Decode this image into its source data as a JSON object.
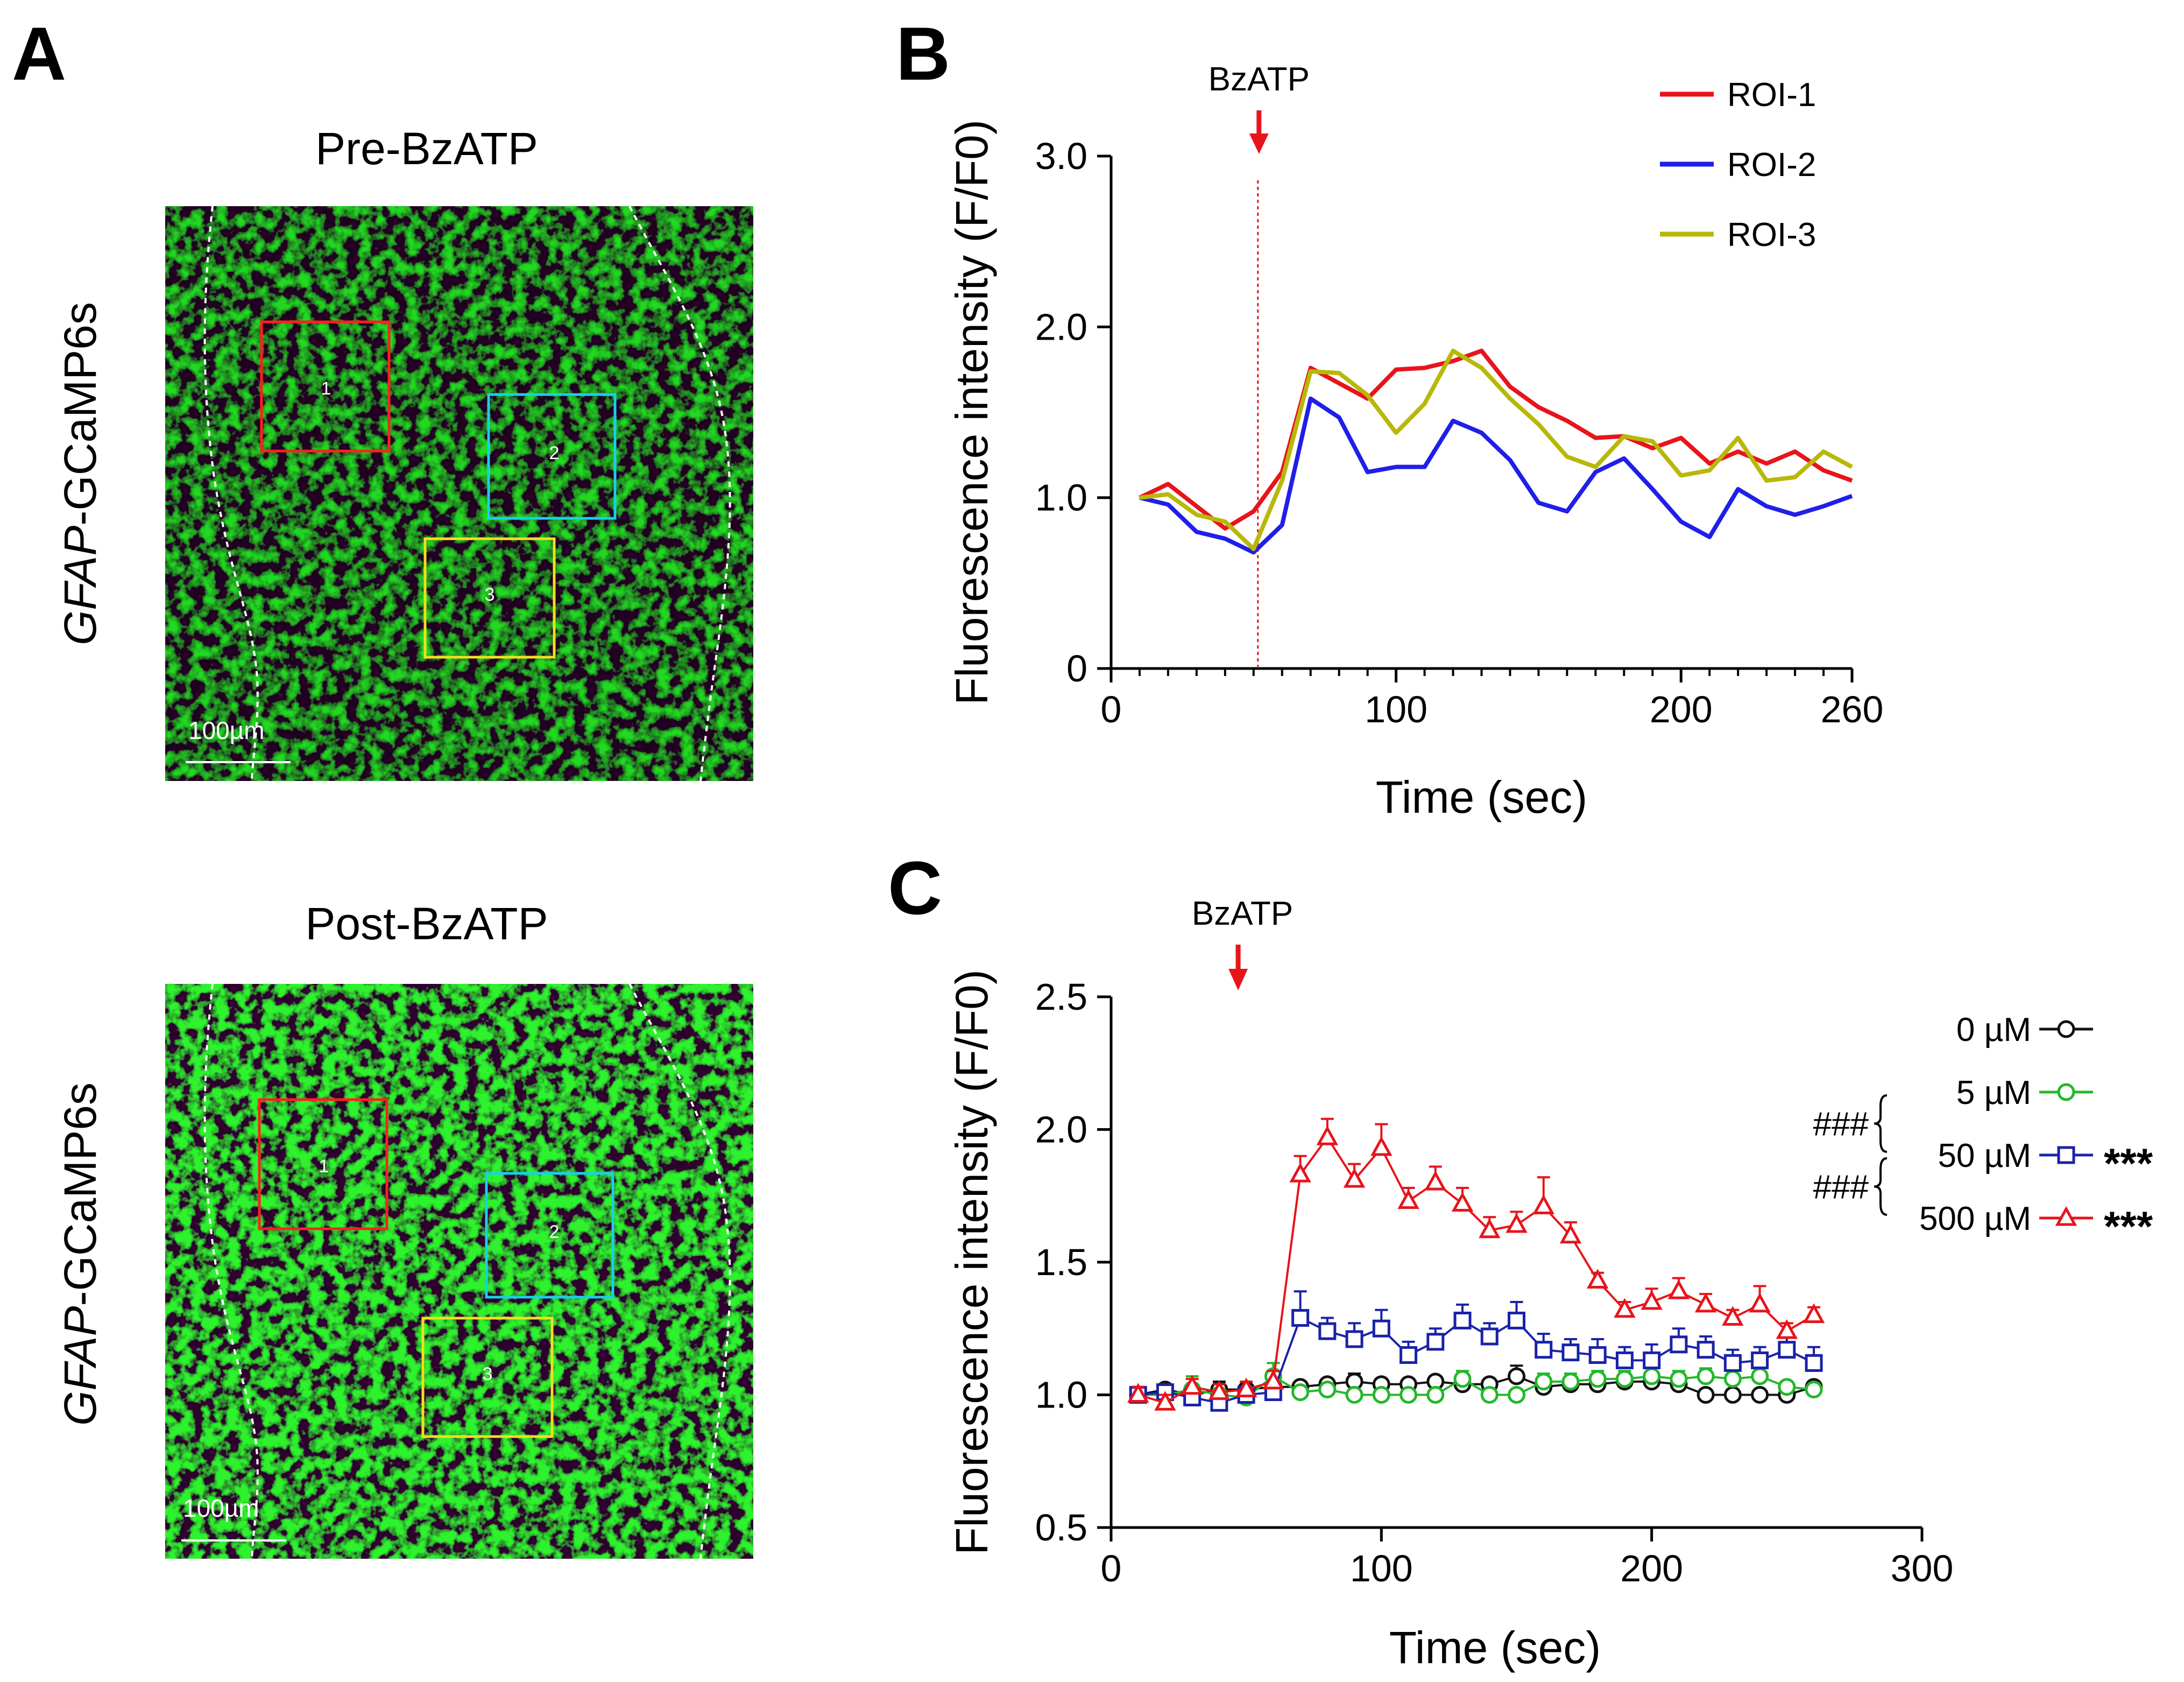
{
  "panels": {
    "a": {
      "letter": "A"
    },
    "b": {
      "letter": "B"
    },
    "c": {
      "letter": "C"
    }
  },
  "images": [
    {
      "title": "Pre-BzATP",
      "ylabel_italic": "GFAP",
      "ylabel_rest": "-GCaMP6s",
      "scale_bar": "100µm",
      "roi_labels": [
        "1",
        "2",
        "3"
      ],
      "roi_colors": [
        "#ff2020",
        "#1ad0e8",
        "#f0e020"
      ]
    },
    {
      "title": "Post-BzATP",
      "ylabel_italic": "GFAP",
      "ylabel_rest": "-GCaMP6s",
      "scale_bar": "100µm",
      "roi_labels": [
        "1",
        "2",
        "3"
      ],
      "roi_colors": [
        "#ff2020",
        "#1ad0e8",
        "#f0e020"
      ]
    }
  ],
  "chart_data": [
    {
      "id": "B",
      "type": "line",
      "xlabel": "Time (sec)",
      "ylabel": "Fluorescence intensity (F/F0)",
      "xlim": [
        0,
        260
      ],
      "ylim": [
        0,
        3.0
      ],
      "xticks": [
        0,
        100,
        200,
        260
      ],
      "xtick_labels": [
        "0",
        "100",
        "200",
        "260"
      ],
      "yticks": [
        0,
        1.0,
        2.0,
        3.0
      ],
      "ytick_labels": [
        "0",
        "1.0",
        "2.0",
        "3.0"
      ],
      "annotation": {
        "text": "BzATP",
        "x": 50,
        "color": "#e8141b"
      },
      "legend_position": "top-right",
      "x": [
        10,
        20,
        30,
        40,
        50,
        60,
        70,
        80,
        90,
        100,
        110,
        120,
        130,
        140,
        150,
        160,
        170,
        180,
        190,
        200,
        210,
        220,
        230,
        240,
        250,
        260
      ],
      "series": [
        {
          "name": "ROI-1",
          "color": "#e8141b",
          "values": [
            1.0,
            1.08,
            0.95,
            0.82,
            0.92,
            1.15,
            1.76,
            1.67,
            1.58,
            1.75,
            1.76,
            1.8,
            1.86,
            1.65,
            1.53,
            1.45,
            1.35,
            1.36,
            1.29,
            1.35,
            1.2,
            1.27,
            1.2,
            1.27,
            1.16,
            1.1
          ]
        },
        {
          "name": "ROI-2",
          "color": "#1f1fe8",
          "values": [
            1.0,
            0.96,
            0.8,
            0.76,
            0.68,
            0.84,
            1.58,
            1.47,
            1.15,
            1.18,
            1.18,
            1.45,
            1.38,
            1.22,
            0.97,
            0.92,
            1.15,
            1.23,
            1.05,
            0.86,
            0.77,
            1.05,
            0.95,
            0.9,
            0.95,
            1.01
          ]
        },
        {
          "name": "ROI-3",
          "color": "#b8b80a",
          "values": [
            1.0,
            1.02,
            0.9,
            0.86,
            0.7,
            1.1,
            1.74,
            1.73,
            1.6,
            1.38,
            1.55,
            1.86,
            1.76,
            1.58,
            1.43,
            1.24,
            1.18,
            1.36,
            1.33,
            1.13,
            1.16,
            1.35,
            1.1,
            1.12,
            1.27,
            1.18
          ]
        }
      ]
    },
    {
      "id": "C",
      "type": "line",
      "xlabel": "Time (sec)",
      "ylabel": "Fluorescence intensity (F/F0)",
      "xlim": [
        0,
        300
      ],
      "ylim": [
        0.5,
        2.5
      ],
      "xticks": [
        0,
        100,
        200,
        300
      ],
      "xtick_labels": [
        "0",
        "100",
        "200",
        "300"
      ],
      "yticks": [
        0.5,
        1.0,
        1.5,
        2.0,
        2.5
      ],
      "ytick_labels": [
        "0.5",
        "1.0",
        "1.5",
        "2.0",
        "2.5"
      ],
      "annotation": {
        "text": "BzATP",
        "x": 47,
        "color": "#e8141b"
      },
      "legend_position": "right",
      "significance": {
        "hash": "###",
        "stars": "***"
      },
      "x": [
        10,
        20,
        30,
        40,
        50,
        60,
        70,
        80,
        90,
        100,
        110,
        120,
        130,
        140,
        150,
        160,
        170,
        180,
        190,
        200,
        210,
        220,
        230,
        240,
        250,
        260
      ],
      "series": [
        {
          "name": "0 µM",
          "color": "#111111",
          "marker": "circle",
          "stars": "",
          "values": [
            1.0,
            1.02,
            1.0,
            1.02,
            1.02,
            1.03,
            1.03,
            1.04,
            1.05,
            1.04,
            1.04,
            1.05,
            1.04,
            1.04,
            1.07,
            1.03,
            1.04,
            1.04,
            1.05,
            1.05,
            1.04,
            1.0,
            1.0,
            1.0,
            1.0,
            1.03
          ],
          "errors": [
            0.03,
            0.02,
            0.02,
            0.03,
            0.02,
            0.02,
            0.02,
            0.02,
            0.03,
            0.02,
            0.02,
            0.02,
            0.02,
            0.02,
            0.04,
            0.03,
            0.02,
            0.02,
            0.02,
            0.02,
            0.02,
            0.02,
            0.02,
            0.02,
            0.02,
            0.02
          ]
        },
        {
          "name": "5 µM",
          "color": "#22b82a",
          "marker": "circle",
          "stars": "",
          "values": [
            1.0,
            1.0,
            1.02,
            1.0,
            0.99,
            1.07,
            1.01,
            1.02,
            1.0,
            1.0,
            1.0,
            1.0,
            1.06,
            1.0,
            1.0,
            1.05,
            1.05,
            1.06,
            1.06,
            1.07,
            1.06,
            1.07,
            1.06,
            1.07,
            1.03,
            1.02
          ],
          "errors": [
            0.02,
            0.02,
            0.05,
            0.02,
            0.02,
            0.05,
            0.02,
            0.02,
            0.02,
            0.02,
            0.02,
            0.02,
            0.03,
            0.02,
            0.02,
            0.03,
            0.03,
            0.03,
            0.03,
            0.04,
            0.03,
            0.03,
            0.03,
            0.03,
            0.02,
            0.02
          ]
        },
        {
          "name": "50 µM",
          "color": "#1a22a8",
          "marker": "square",
          "stars": "***",
          "values": [
            1.0,
            1.01,
            0.99,
            0.97,
            1.0,
            1.01,
            1.29,
            1.24,
            1.21,
            1.25,
            1.15,
            1.2,
            1.28,
            1.22,
            1.28,
            1.17,
            1.16,
            1.15,
            1.13,
            1.13,
            1.19,
            1.17,
            1.12,
            1.13,
            1.17,
            1.12
          ],
          "errors": [
            0.03,
            0.03,
            0.03,
            0.03,
            0.03,
            0.03,
            0.1,
            0.05,
            0.06,
            0.07,
            0.05,
            0.05,
            0.06,
            0.05,
            0.07,
            0.06,
            0.05,
            0.06,
            0.05,
            0.06,
            0.06,
            0.05,
            0.05,
            0.05,
            0.05,
            0.06
          ]
        },
        {
          "name": "500 µM",
          "color": "#e8141b",
          "marker": "triangle",
          "stars": "***",
          "values": [
            1.0,
            0.97,
            1.03,
            1.01,
            1.02,
            1.05,
            1.83,
            1.97,
            1.81,
            1.93,
            1.73,
            1.8,
            1.72,
            1.62,
            1.64,
            1.71,
            1.6,
            1.43,
            1.32,
            1.35,
            1.39,
            1.34,
            1.29,
            1.34,
            1.24,
            1.3
          ],
          "errors": [
            0.03,
            0.03,
            0.03,
            0.03,
            0.03,
            0.04,
            0.07,
            0.07,
            0.06,
            0.09,
            0.05,
            0.06,
            0.06,
            0.05,
            0.05,
            0.11,
            0.05,
            0.03,
            0.03,
            0.05,
            0.05,
            0.04,
            0.03,
            0.07,
            0.03,
            0.03
          ]
        }
      ]
    }
  ]
}
